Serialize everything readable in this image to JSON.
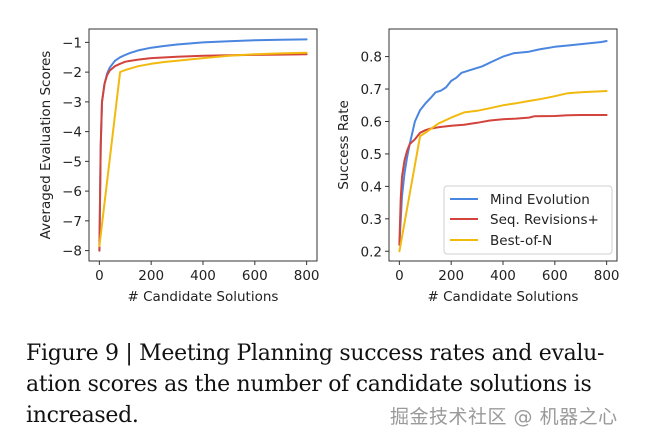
{
  "chart_data": [
    {
      "type": "line",
      "title": "",
      "xlabel": "# Candidate Solutions",
      "ylabel": "Averaged Evaluation Scores",
      "xlim": [
        -40,
        840
      ],
      "ylim": [
        -8.35,
        -0.55
      ],
      "xticks": [
        0,
        200,
        400,
        600,
        800
      ],
      "xtick_labels": [
        "0",
        "200",
        "400",
        "600",
        "800"
      ],
      "yticks": [
        -1,
        -2,
        -3,
        -4,
        -5,
        -6,
        -7,
        -8
      ],
      "ytick_labels": [
        "−1",
        "−2",
        "−3",
        "−4",
        "−5",
        "−6",
        "−7",
        "−8"
      ],
      "grid": false,
      "legend": null,
      "series": [
        {
          "name": "Mind Evolution",
          "color": "#4a86e0",
          "x": [
            0,
            5,
            10,
            20,
            30,
            40,
            60,
            80,
            100,
            120,
            150,
            200,
            250,
            300,
            400,
            500,
            600,
            700,
            800
          ],
          "y": [
            -8.0,
            -4.5,
            -3.0,
            -2.4,
            -2.05,
            -1.85,
            -1.62,
            -1.5,
            -1.42,
            -1.35,
            -1.27,
            -1.18,
            -1.12,
            -1.07,
            -1.0,
            -0.96,
            -0.93,
            -0.91,
            -0.9
          ]
        },
        {
          "name": "Seq. Revisions+",
          "color": "#d2433c",
          "x": [
            0,
            5,
            10,
            20,
            30,
            40,
            60,
            80,
            100,
            150,
            200,
            300,
            400,
            500,
            600,
            700,
            800
          ],
          "y": [
            -8.0,
            -4.5,
            -3.0,
            -2.4,
            -2.1,
            -1.95,
            -1.8,
            -1.72,
            -1.65,
            -1.58,
            -1.53,
            -1.48,
            -1.45,
            -1.43,
            -1.42,
            -1.41,
            -1.4
          ]
        },
        {
          "name": "Best-of-N",
          "color": "#f2b90f",
          "x": [
            0,
            80,
            100,
            150,
            200,
            250,
            300,
            400,
            500,
            600,
            700,
            800
          ],
          "y": [
            -7.85,
            -2.0,
            -1.93,
            -1.8,
            -1.72,
            -1.66,
            -1.62,
            -1.53,
            -1.45,
            -1.4,
            -1.37,
            -1.35
          ]
        }
      ]
    },
    {
      "type": "line",
      "title": "",
      "xlabel": "# Candidate Solutions",
      "ylabel": "Success Rate",
      "xlim": [
        -40,
        840
      ],
      "ylim": [
        0.17,
        0.885
      ],
      "xticks": [
        0,
        200,
        400,
        600,
        800
      ],
      "xtick_labels": [
        "0",
        "200",
        "400",
        "600",
        "800"
      ],
      "yticks": [
        0.2,
        0.3,
        0.4,
        0.5,
        0.6,
        0.7,
        0.8
      ],
      "ytick_labels": [
        "0.2",
        "0.3",
        "0.4",
        "0.5",
        "0.6",
        "0.7",
        "0.8"
      ],
      "grid": false,
      "legend": "lower-right",
      "series": [
        {
          "name": "Mind Evolution",
          "color": "#4a86e0",
          "x": [
            0,
            10,
            20,
            30,
            40,
            60,
            80,
            100,
            120,
            140,
            160,
            180,
            200,
            220,
            240,
            280,
            320,
            360,
            400,
            440,
            500,
            540,
            600,
            660,
            720,
            780,
            800
          ],
          "y": [
            0.22,
            0.37,
            0.44,
            0.49,
            0.53,
            0.6,
            0.635,
            0.655,
            0.672,
            0.69,
            0.695,
            0.705,
            0.725,
            0.735,
            0.75,
            0.76,
            0.77,
            0.785,
            0.8,
            0.81,
            0.815,
            0.822,
            0.83,
            0.835,
            0.84,
            0.845,
            0.848
          ]
        },
        {
          "name": "Seq. Revisions+",
          "color": "#d2433c",
          "x": [
            0,
            5,
            10,
            20,
            30,
            40,
            60,
            80,
            100,
            120,
            150,
            200,
            250,
            300,
            350,
            400,
            450,
            500,
            520,
            600,
            650,
            700,
            800
          ],
          "y": [
            0.22,
            0.36,
            0.43,
            0.48,
            0.51,
            0.53,
            0.545,
            0.565,
            0.573,
            0.578,
            0.582,
            0.587,
            0.59,
            0.596,
            0.603,
            0.607,
            0.609,
            0.612,
            0.616,
            0.617,
            0.619,
            0.62,
            0.62
          ]
        },
        {
          "name": "Best-of-N",
          "color": "#f2b90f",
          "x": [
            0,
            80,
            100,
            150,
            200,
            250,
            300,
            350,
            400,
            450,
            500,
            550,
            600,
            650,
            700,
            750,
            800
          ],
          "y": [
            0.2,
            0.555,
            0.565,
            0.593,
            0.612,
            0.628,
            0.633,
            0.641,
            0.65,
            0.656,
            0.663,
            0.67,
            0.678,
            0.687,
            0.69,
            0.692,
            0.694
          ]
        }
      ]
    }
  ],
  "legend": {
    "entries": [
      "Mind Evolution",
      "Seq. Revisions+",
      "Best-of-N"
    ],
    "colors": [
      "#4a86e0",
      "#d2433c",
      "#f2b90f"
    ]
  },
  "caption": {
    "text": "Figure 9 | Meeting Planning success rates and evaluation scores as the number of candidate solutions is increased.",
    "line1": "Figure 9 | Meeting Planning success rates and evalu-",
    "line2": "ation scores as the number of candidate solutions is",
    "line3": "increased."
  },
  "watermark": "掘金技术社区 @ 机器之心"
}
